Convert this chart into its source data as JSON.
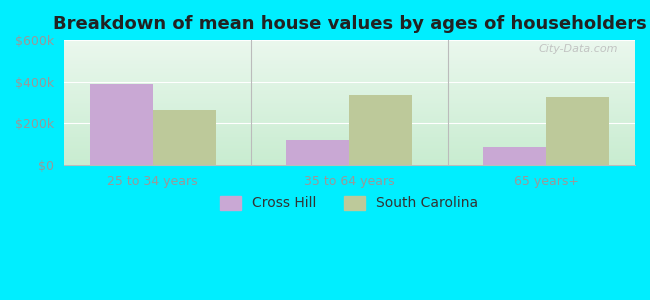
{
  "title": "Breakdown of mean house values by ages of householders",
  "categories": [
    "25 to 34 years",
    "35 to 64 years",
    "65 years+"
  ],
  "cross_hill_values": [
    390000,
    120000,
    85000
  ],
  "south_carolina_values": [
    265000,
    335000,
    325000
  ],
  "ylim": [
    0,
    600000
  ],
  "yticks": [
    0,
    200000,
    400000,
    600000
  ],
  "ytick_labels": [
    "$0",
    "$200k",
    "$400k",
    "$600k"
  ],
  "bar_color_cross_hill": "#c9a8d4",
  "bar_color_south_carolina": "#bdc99a",
  "legend_label_1": "Cross Hill",
  "legend_label_2": "South Carolina",
  "background_outer": "#00eeff",
  "watermark": "City-Data.com",
  "title_fontsize": 13,
  "tick_fontsize": 9,
  "legend_fontsize": 10,
  "bg_top_color": "#eaf7ed",
  "bg_bottom_color": "#c8ecd0"
}
